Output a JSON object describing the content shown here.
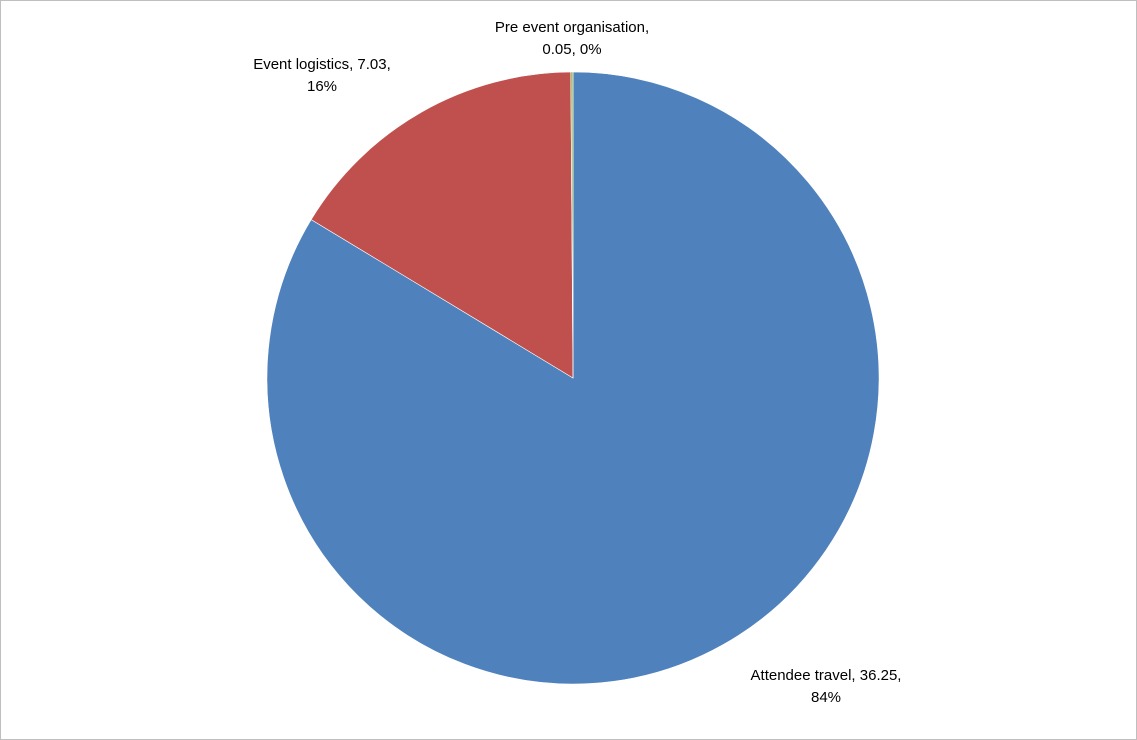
{
  "chart_data": {
    "type": "pie",
    "title": "",
    "categories": [
      "Attendee travel",
      "Event logistics",
      "Pre event organisation"
    ],
    "values": [
      36.25,
      7.03,
      0.05
    ],
    "percent_labels": [
      "84%",
      "16%",
      "0%"
    ],
    "colors": [
      "#4F81BD",
      "#C0504D",
      "#9BBB59"
    ],
    "start_angle_deg": 0,
    "direction": "clockwise",
    "legend": "none",
    "data_labels": [
      {
        "line1": "Attendee travel, 36.25,",
        "line2": "84%"
      },
      {
        "line1": "Event logistics, 7.03,",
        "line2": "16%"
      },
      {
        "line1": "Pre event organisation,",
        "line2": "0.05, 0%"
      }
    ]
  }
}
